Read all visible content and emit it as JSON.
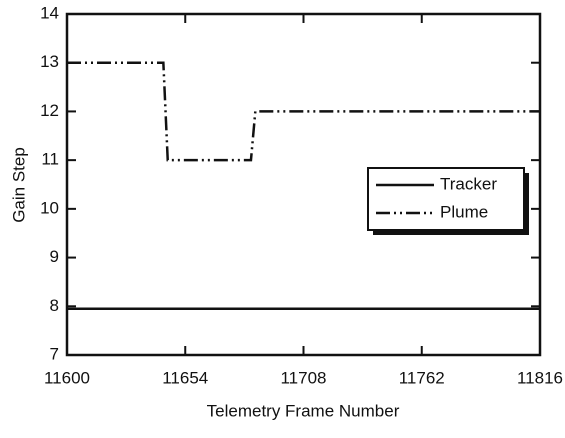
{
  "chart_data": {
    "type": "line",
    "xlabel": "Telemetry Frame Number",
    "ylabel": "Gain Step",
    "x": [
      11600,
      11644,
      11646,
      11684,
      11686,
      11816
    ],
    "series": [
      {
        "name": "Tracker",
        "color": "#111111",
        "dash": "solid",
        "values": [
          7.95,
          7.95,
          7.95,
          7.95,
          7.95,
          7.95
        ]
      },
      {
        "name": "Plume",
        "color": "#111111",
        "dash": "dash-dot-dot",
        "values": [
          13,
          13,
          11,
          11,
          12,
          12
        ]
      }
    ],
    "xlim": [
      11600,
      11816
    ],
    "xticks": [
      11600,
      11654,
      11708,
      11762,
      11816
    ],
    "ylim": [
      7,
      14
    ],
    "yticks": [
      7,
      8,
      9,
      10,
      11,
      12,
      13,
      14
    ],
    "legend": "right"
  }
}
